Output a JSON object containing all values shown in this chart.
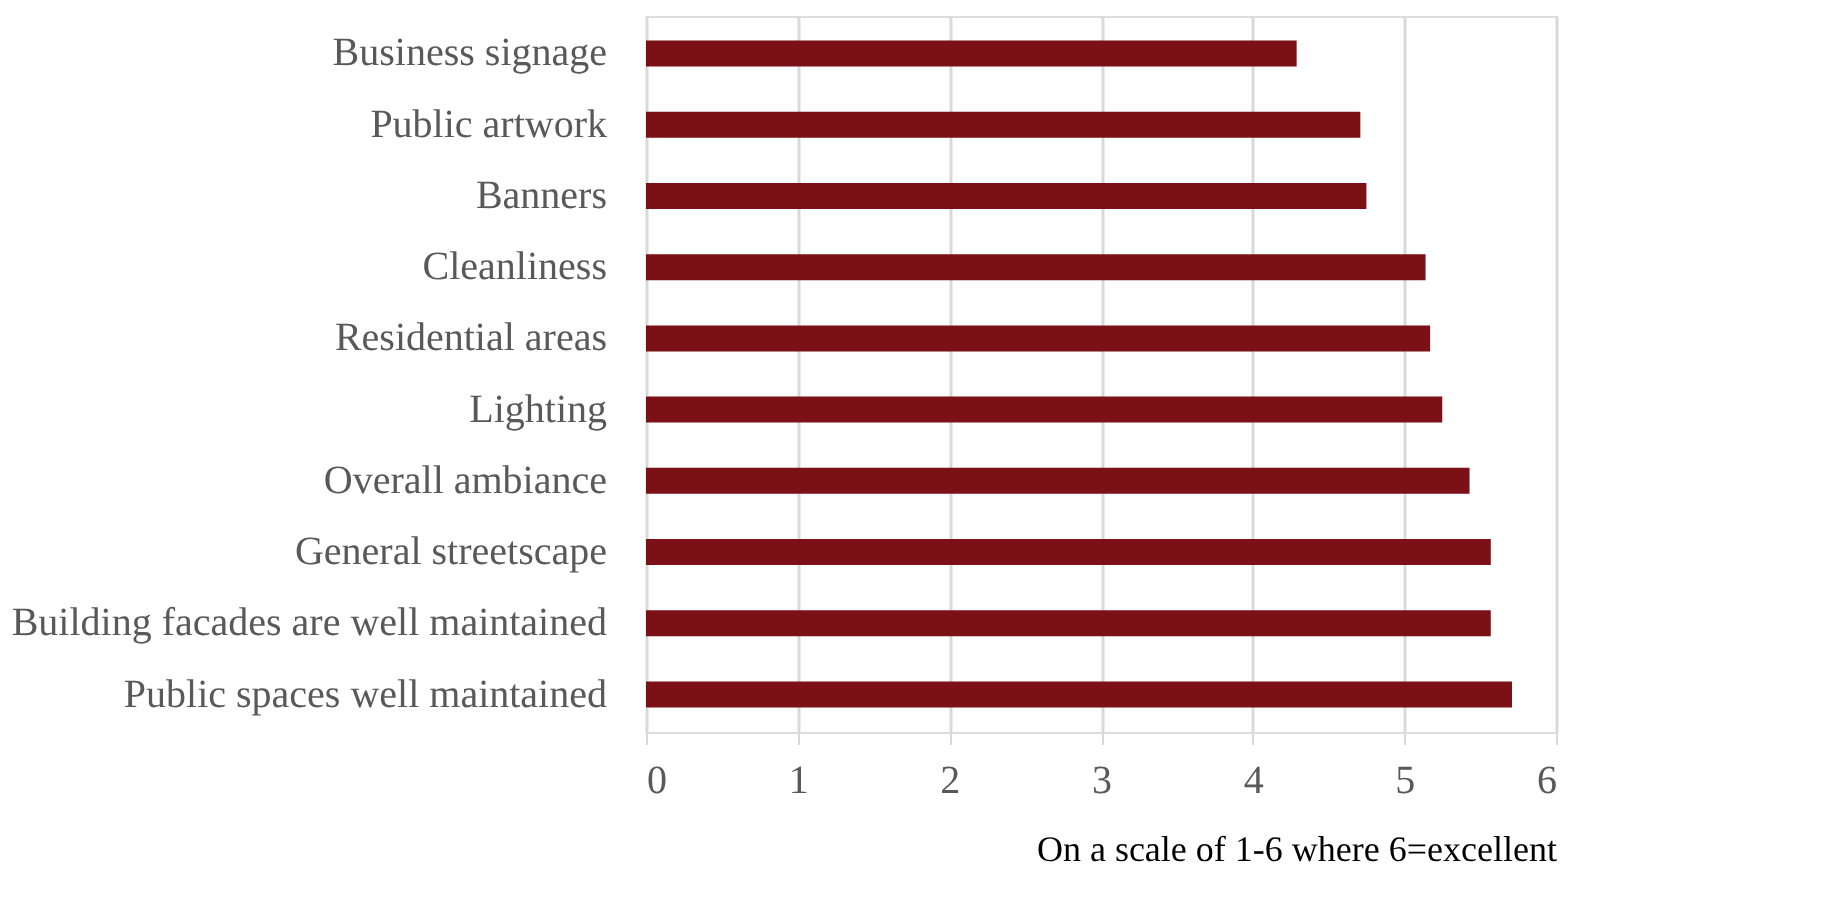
{
  "chart_data": {
    "type": "bar",
    "orientation": "horizontal",
    "categories": [
      "Business signage",
      "Public artwork",
      "Banners",
      "Cleanliness",
      "Residential areas",
      "Lighting",
      "Overall ambiance",
      "General streetscape",
      "Building facades are well maintained",
      "Public spaces well maintained"
    ],
    "values": [
      4.29,
      4.71,
      4.75,
      5.14,
      5.17,
      5.25,
      5.43,
      5.57,
      5.57,
      5.71
    ],
    "color": "#7b1116",
    "xlim": [
      0,
      6
    ],
    "xticks": [
      0,
      1,
      2,
      3,
      4,
      5,
      6
    ],
    "grid": "x",
    "xlabel": "On a scale of 1-6 where 6=excellent"
  }
}
